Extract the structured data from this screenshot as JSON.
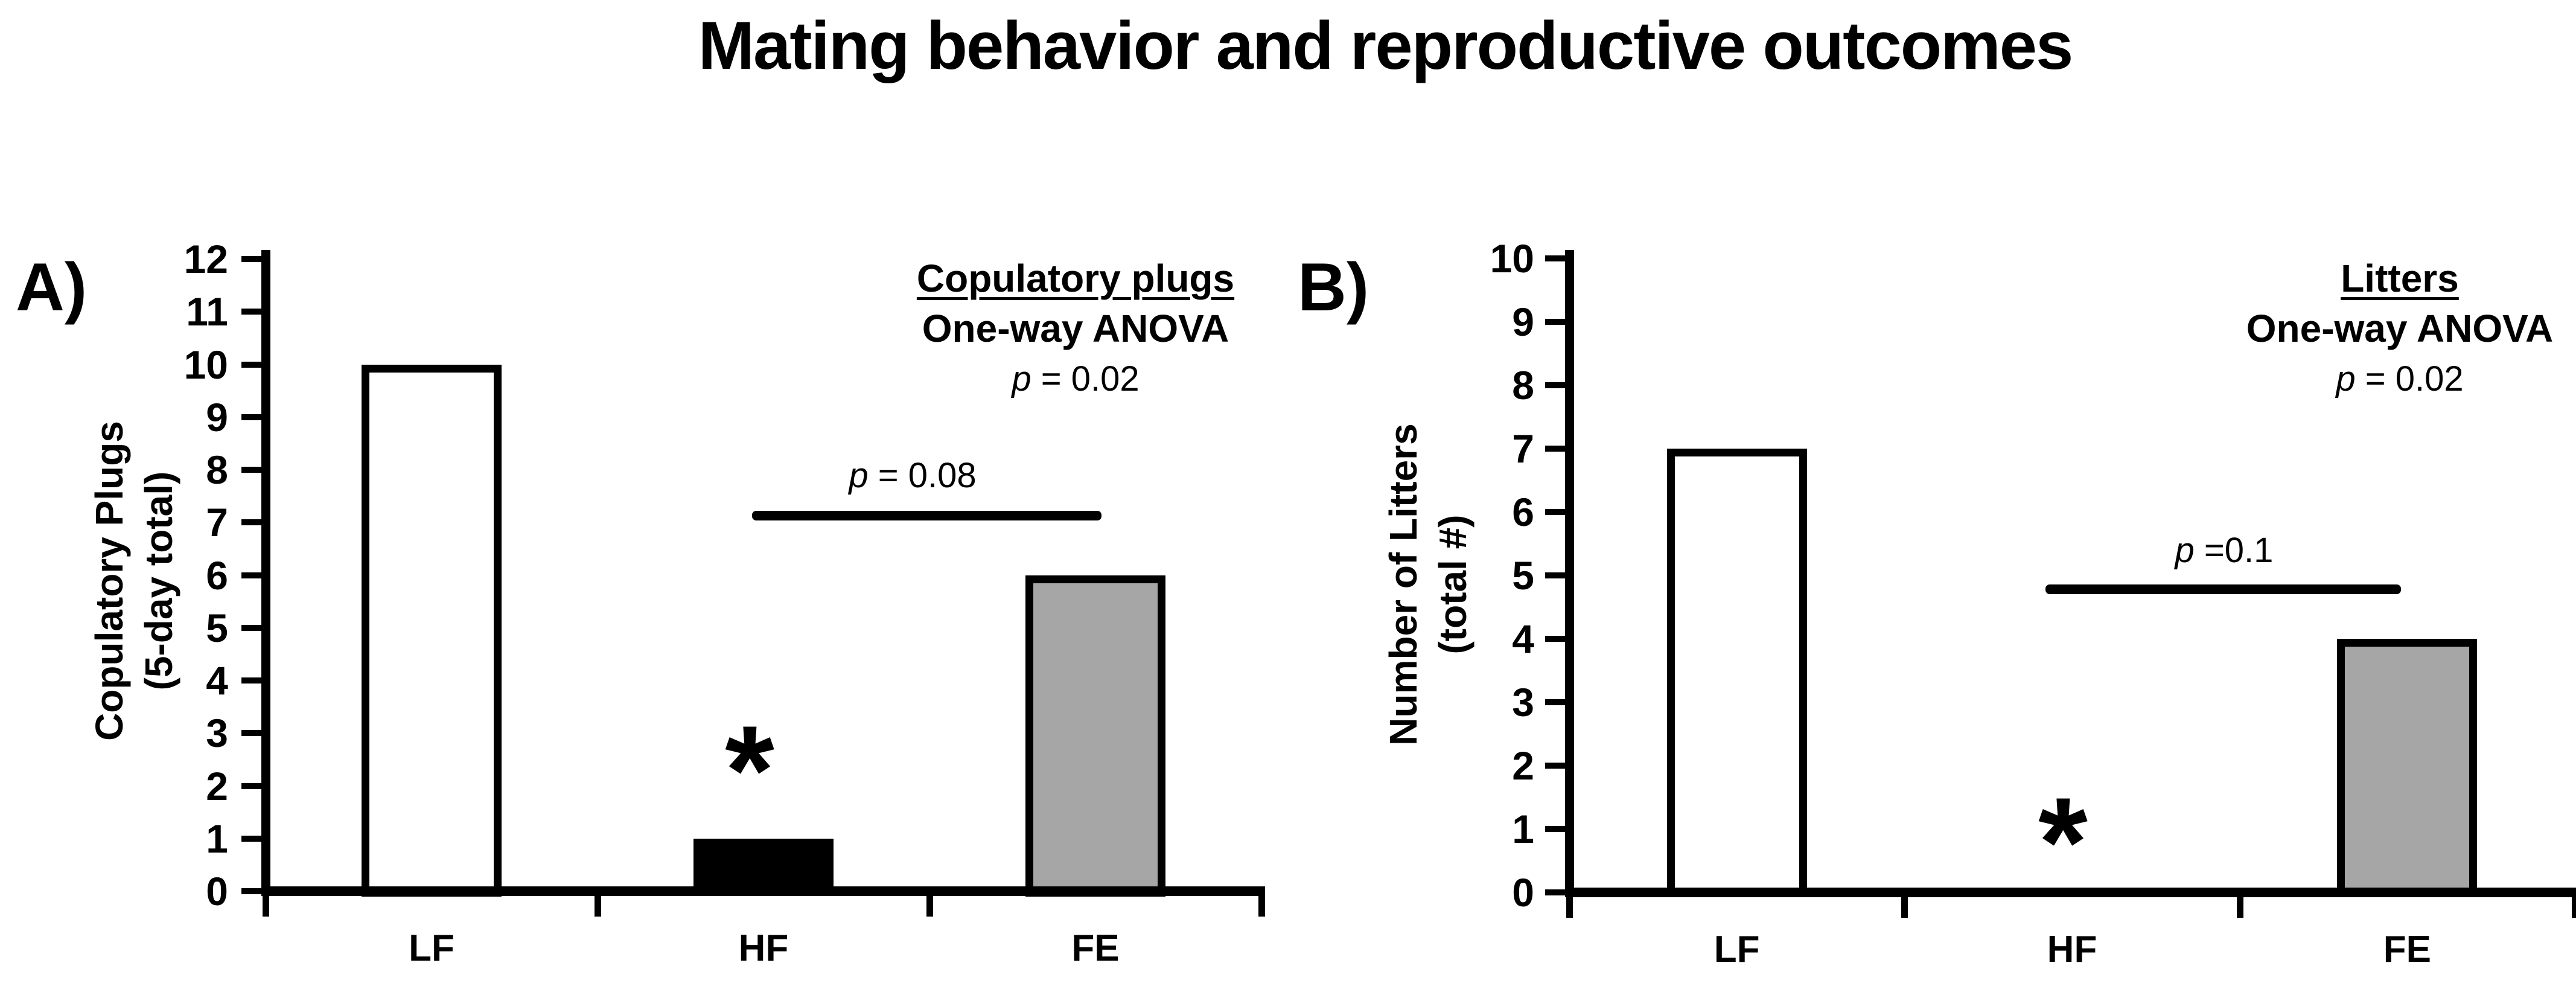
{
  "title": "Mating behavior and reproductive outcomes",
  "colors": {
    "ink": "#000000",
    "background": "#FFFFFF",
    "bar_white": "#FFFFFF",
    "bar_black": "#000000",
    "bar_gray": "#A6A6A6"
  },
  "chart_data": [
    {
      "type": "bar",
      "panel_label": "A)",
      "categories": [
        "LF",
        "HF",
        "FE"
      ],
      "values": [
        10,
        1,
        6
      ],
      "bar_fill_colors": [
        "#FFFFFF",
        "#000000",
        "#A6A6A6"
      ],
      "bar_border_color": "#000000",
      "ylabel_lines": [
        "Copulatory Plugs",
        "(5-day total)"
      ],
      "xlabel": "",
      "ylim": [
        0,
        12
      ],
      "ytick_interval": 1,
      "grid": false,
      "legend": "none",
      "stats_note": {
        "heading": "Copulatory plugs",
        "line2": "One-way ANOVA",
        "line3": "p = 0.02"
      },
      "comparison_bar": {
        "between": [
          "HF",
          "FE"
        ],
        "label": "p = 0.08",
        "y_value": 7.1
      },
      "significance_marker": {
        "category": "HF",
        "symbol": "*"
      }
    },
    {
      "type": "bar",
      "panel_label": "B)",
      "categories": [
        "LF",
        "HF",
        "FE"
      ],
      "values": [
        7,
        0,
        4
      ],
      "bar_fill_colors": [
        "#FFFFFF",
        "#000000",
        "#A6A6A6"
      ],
      "bar_border_color": "#000000",
      "ylabel_lines": [
        "Number of Litters",
        "(total #)"
      ],
      "xlabel": "",
      "ylim": [
        0,
        10
      ],
      "ytick_interval": 1,
      "grid": false,
      "legend": "none",
      "stats_note": {
        "heading": "Litters",
        "line2": "One-way ANOVA",
        "line3": "p = 0.02"
      },
      "comparison_bar": {
        "between": [
          "HF",
          "FE"
        ],
        "label": "p =0.1",
        "y_value": 4.8
      },
      "significance_marker": {
        "category": "HF",
        "symbol": "*"
      }
    }
  ]
}
